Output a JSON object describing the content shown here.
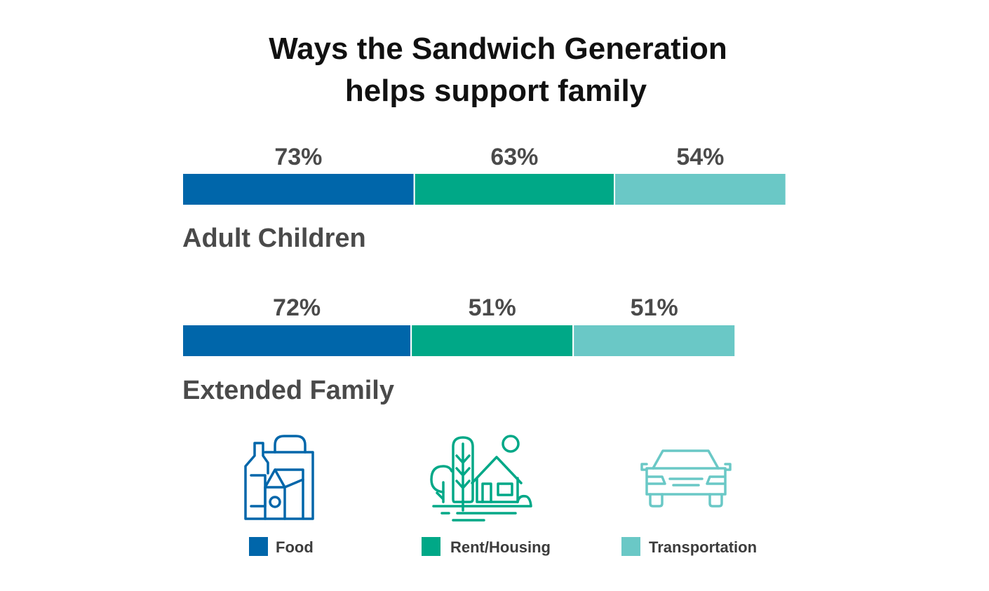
{
  "chart_data": {
    "type": "bar",
    "orientation": "horizontal-segmented",
    "title_lines": [
      "Ways the Sandwich Generation",
      "helps support family"
    ],
    "categories": [
      "Adult Children",
      "Extended Family"
    ],
    "series": [
      {
        "name": "Food",
        "values": [
          73,
          72
        ],
        "labels": [
          "73%",
          "72%"
        ],
        "color": "#0066aa"
      },
      {
        "name": "Rent/Housing",
        "values": [
          63,
          51
        ],
        "labels": [
          "63%",
          "51%"
        ],
        "color": "#00a887"
      },
      {
        "name": "Transportation",
        "values": [
          54,
          51
        ],
        "labels": [
          "54%",
          "51%"
        ],
        "color": "#6ac8c6"
      }
    ],
    "unit": "%",
    "legend_position": "bottom",
    "legend_icons": [
      "food-bottle-bag-icon",
      "house-trees-icon",
      "car-icon"
    ]
  }
}
